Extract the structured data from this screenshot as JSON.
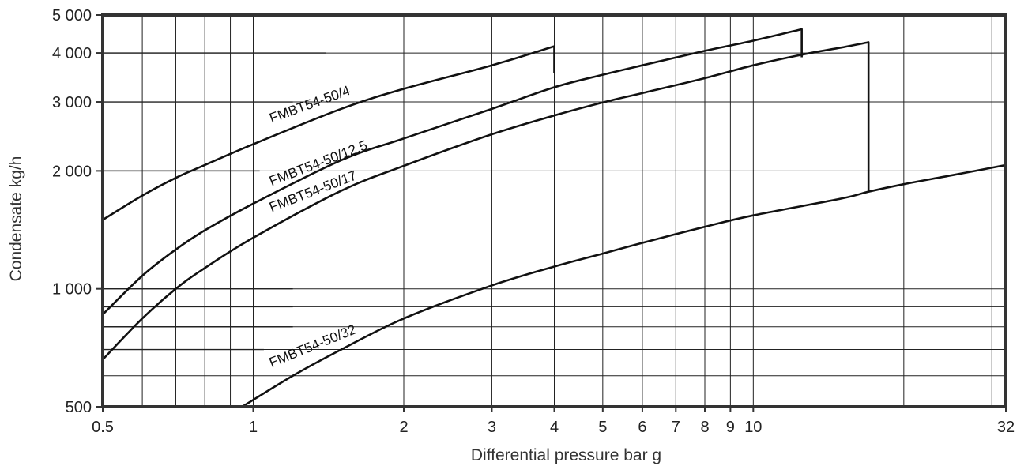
{
  "chart_data": {
    "type": "line",
    "title": "",
    "xlabel": "Differential pressure bar g",
    "ylabel": "Condensate  kg/h",
    "x_scale": "log",
    "y_scale": "log",
    "xlim": [
      0.5,
      32
    ],
    "ylim": [
      500,
      5000
    ],
    "x_ticks": [
      {
        "value": 0.5,
        "label": "0.5"
      },
      {
        "value": 1,
        "label": "1"
      },
      {
        "value": 2,
        "label": "2"
      },
      {
        "value": 3,
        "label": "3"
      },
      {
        "value": 4,
        "label": "4"
      },
      {
        "value": 5,
        "label": "5"
      },
      {
        "value": 6,
        "label": "6"
      },
      {
        "value": 7,
        "label": "7"
      },
      {
        "value": 8,
        "label": "8"
      },
      {
        "value": 9,
        "label": "9"
      },
      {
        "value": 10,
        "label": "10"
      },
      {
        "value": 32,
        "label": "32"
      }
    ],
    "y_ticks": [
      {
        "value": 500,
        "label": "500"
      },
      {
        "value": 1000,
        "label": "1 000"
      },
      {
        "value": 2000,
        "label": "2 000"
      },
      {
        "value": 3000,
        "label": "3 000"
      },
      {
        "value": 4000,
        "label": "4 000"
      },
      {
        "value": 5000,
        "label": "5 000"
      }
    ],
    "grid": true,
    "legend": "inline labels on curves",
    "series": [
      {
        "name": "FMBT54-50/4",
        "x": [
          0.5,
          0.6,
          0.7,
          0.8,
          1,
          1.5,
          2,
          3,
          4,
          4
        ],
        "y": [
          1500,
          1730,
          1920,
          2070,
          2340,
          2880,
          3240,
          3720,
          4160,
          3550
        ]
      },
      {
        "name": "FMBT54-50/12.5",
        "x": [
          0.5,
          0.6,
          0.7,
          0.8,
          1,
          1.5,
          2,
          3,
          4,
          5,
          6,
          8,
          10,
          12.5,
          12.5
        ],
        "y": [
          860,
          1080,
          1260,
          1410,
          1650,
          2130,
          2420,
          2880,
          3270,
          3520,
          3720,
          4050,
          4300,
          4600,
          3900
        ]
      },
      {
        "name": "FMBT54-50/17",
        "x": [
          0.5,
          0.6,
          0.7,
          0.8,
          1,
          1.5,
          2,
          3,
          4,
          5,
          6,
          8,
          10,
          12.5,
          15,
          17,
          17
        ],
        "y": [
          660,
          840,
          1000,
          1130,
          1350,
          1780,
          2060,
          2480,
          2770,
          2990,
          3160,
          3450,
          3720,
          3960,
          4130,
          4260,
          1770
        ]
      },
      {
        "name": "FMBT54-50/32",
        "x": [
          0.95,
          1.2,
          1.5,
          2,
          3,
          4,
          5,
          6,
          8,
          10,
          15,
          17,
          20,
          25,
          32
        ],
        "y": [
          500,
          600,
          700,
          840,
          1020,
          1140,
          1230,
          1310,
          1440,
          1540,
          1700,
          1770,
          1850,
          1950,
          2070
        ]
      }
    ]
  }
}
